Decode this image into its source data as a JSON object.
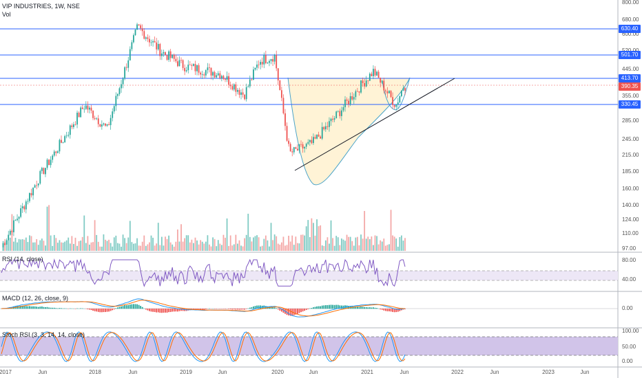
{
  "header": {
    "symbol": "VIP INDUSTRIES, 1W, NSE",
    "volume_label": "Vol"
  },
  "panes": {
    "rsi_label": "RSI (14, close)",
    "macd_label": "MACD (12, 26, close, 9)",
    "stoch_label": "Stoch RSI (3, 3, 14, 14, close)"
  },
  "price_axis": {
    "ticks": [
      "800.00",
      "680.00",
      "600.00",
      "520.00",
      "445.00",
      "355.00",
      "285.00",
      "245.00",
      "215.00",
      "185.00",
      "160.00",
      "140.00",
      "124.00",
      "110.00",
      "97.00"
    ],
    "level_tags": [
      {
        "value": "630.40",
        "color": "#2962ff"
      },
      {
        "value": "501.70",
        "color": "#2962ff"
      },
      {
        "value": "413.70",
        "color": "#2962ff"
      },
      {
        "value": "390.35",
        "color": "#ef5350"
      },
      {
        "value": "330.45",
        "color": "#2962ff"
      }
    ]
  },
  "rsi_axis": {
    "ticks": [
      "80.00",
      "40.00"
    ]
  },
  "macd_axis": {
    "ticks": [
      "0.00"
    ]
  },
  "stoch_axis": {
    "ticks": [
      "100.00",
      "50.00",
      "0.00"
    ]
  },
  "time_axis": {
    "ticks": [
      "2017",
      "Jun",
      "2018",
      "Jun",
      "2019",
      "Jun",
      "2020",
      "Jun",
      "2021",
      "Jun",
      "2022",
      "Jun",
      "2023",
      "Jun"
    ]
  },
  "colors": {
    "up": "#26a69a",
    "down": "#ef5350",
    "level_line": "#2962ff",
    "rsi_line": "#7e57c2",
    "rsi_band": "#ede7f6",
    "macd_line": "#2196f3",
    "signal_line": "#ff6d00",
    "stoch_k": "#2196f3",
    "stoch_d": "#ff6d00",
    "stoch_band": "#d1c4e9",
    "cup_fill": "#fff3d6",
    "cup_stroke": "#4aa3c8"
  },
  "chart_data": {
    "type": "candlestick",
    "interval": "1W",
    "scale": "log",
    "y_range": [
      97,
      800
    ],
    "horizontal_levels": [
      630.4,
      501.7,
      413.7,
      390.35,
      330.45
    ],
    "weekly_close_keypoints": [
      {
        "date": "2017-01",
        "close": 100
      },
      {
        "date": "2017-06",
        "close": 180
      },
      {
        "date": "2017-12",
        "close": 330
      },
      {
        "date": "2018-03",
        "close": 270
      },
      {
        "date": "2018-07",
        "close": 640
      },
      {
        "date": "2018-10",
        "close": 520
      },
      {
        "date": "2019-01",
        "close": 460
      },
      {
        "date": "2019-06",
        "close": 430
      },
      {
        "date": "2019-09",
        "close": 360
      },
      {
        "date": "2019-11",
        "close": 480
      },
      {
        "date": "2020-01",
        "close": 500
      },
      {
        "date": "2020-03",
        "close": 220
      },
      {
        "date": "2020-06",
        "close": 240
      },
      {
        "date": "2020-09",
        "close": 300
      },
      {
        "date": "2020-12",
        "close": 380
      },
      {
        "date": "2021-02",
        "close": 440
      },
      {
        "date": "2021-05",
        "close": 330
      },
      {
        "date": "2021-06",
        "close": 390
      }
    ]
  }
}
